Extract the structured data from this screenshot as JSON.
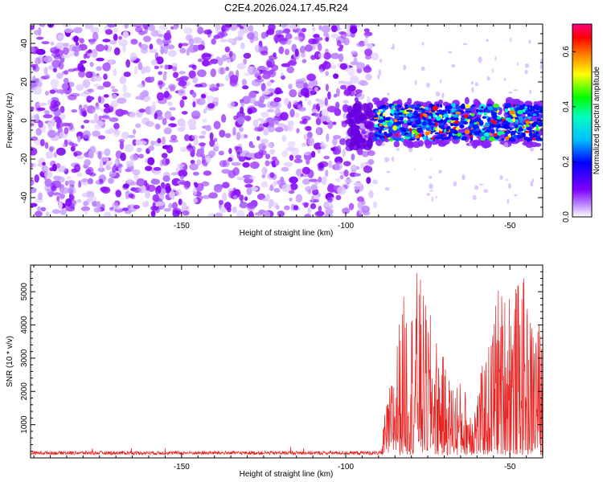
{
  "chart_data": [
    {
      "type": "heatmap",
      "title": "C2E4.2026.024.17.45.R24",
      "xlabel": "Height of straight line (km)",
      "ylabel": "Frequency (Hz)",
      "xlim": [
        -196,
        -40
      ],
      "ylim": [
        -50,
        50
      ],
      "x_ticks": [
        -150,
        -100,
        -50
      ],
      "y_ticks": [
        -40,
        -20,
        0,
        20,
        40
      ],
      "noise_region_x": [
        -196,
        -91
      ],
      "signal_region_x": [
        -91,
        -40
      ],
      "signal_band_hz": [
        -10,
        8
      ],
      "colorbar": {
        "label": "Normalized spectral amplitude",
        "range": [
          0.0,
          0.7
        ],
        "ticks": [
          "0.0",
          "0.2",
          "0.4",
          "0.6"
        ],
        "tick_values": [
          0.0,
          0.2,
          0.4,
          0.6
        ],
        "colors": [
          "#ffffff",
          "#8000ff",
          "#0000ff",
          "#00ffff",
          "#00ff00",
          "#ffff00",
          "#ff8000",
          "#ff0000",
          "#ff00ff"
        ]
      }
    },
    {
      "type": "line",
      "xlabel": "Height of straight line (km)",
      "ylabel": "SNR (10 * v/v)",
      "xlim": [
        -196,
        -40
      ],
      "ylim": [
        0,
        5800
      ],
      "x_ticks": [
        -150,
        -100,
        -50
      ],
      "y_ticks": [
        1000,
        2000,
        3000,
        4000,
        5000
      ],
      "series": [
        {
          "name": "SNR",
          "color": "#e8201e",
          "baseline_level": 150,
          "onset_x": -89,
          "envelope_x": [
            -196,
            -90,
            -89,
            -86,
            -84,
            -82,
            -80,
            -78,
            -76,
            -74,
            -72,
            -70,
            -68,
            -66,
            -64,
            -62,
            -60,
            -58,
            -56,
            -54,
            -52,
            -50,
            -48,
            -46,
            -44,
            -42,
            -40
          ],
          "envelope_y": [
            230,
            230,
            800,
            2400,
            4000,
            5000,
            4700,
            5800,
            4700,
            4200,
            3500,
            2900,
            2300,
            2400,
            2100,
            1800,
            2000,
            2900,
            3500,
            5300,
            5000,
            5700,
            5200,
            5500,
            4300,
            4500,
            3500
          ]
        }
      ]
    }
  ]
}
